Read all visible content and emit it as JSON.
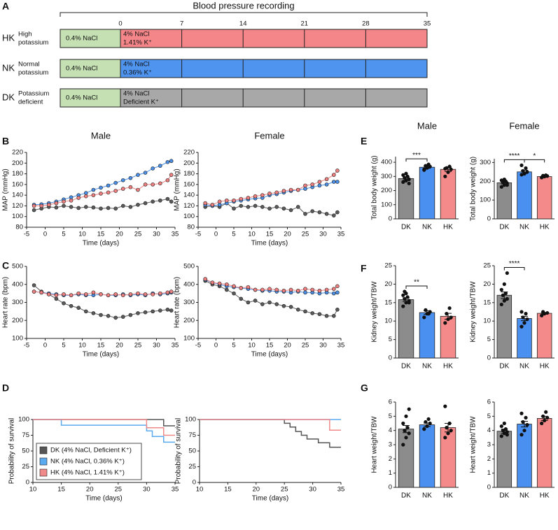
{
  "panel_labels": [
    "A",
    "B",
    "C",
    "D",
    "E",
    "F",
    "G"
  ],
  "timeline": {
    "title": "Blood pressure recording",
    "ticks": [
      0,
      7,
      14,
      21,
      28,
      35
    ],
    "rows": [
      {
        "group": "HK",
        "label": [
          "High",
          "potassium"
        ],
        "baseline": "0.4% NaCl",
        "diet": [
          "4% NaCl",
          "1.41% K⁺"
        ],
        "color": "#f4868a"
      },
      {
        "group": "NK",
        "label": [
          "Normal",
          "potassium"
        ],
        "baseline": "0.4% NaCl",
        "diet": [
          "4% NaCl",
          "0.36% K⁺"
        ],
        "color": "#4f94ef"
      },
      {
        "group": "DK",
        "label": [
          "Potassium",
          "deficient"
        ],
        "baseline": "0.4% NaCl",
        "diet": [
          "4% NaCl",
          "Deficient K⁺"
        ],
        "color": "#a8a8a8"
      }
    ],
    "baseline_color": "#c5e0b3"
  },
  "chart_data": [
    {
      "type": "line",
      "title": "Male",
      "xlabel": "Time (days)",
      "ylabel": "MAP (mmHg)",
      "x": [
        -3,
        -1,
        1,
        3,
        5,
        7,
        9,
        11,
        13,
        15,
        17,
        19,
        21,
        23,
        25,
        27,
        29,
        31,
        33,
        34
      ],
      "xlim": [
        -5,
        35
      ],
      "xticks": [
        -5,
        0,
        5,
        10,
        15,
        20,
        25,
        30,
        35
      ],
      "ylim": [
        80,
        220
      ],
      "yticks": [
        80,
        100,
        120,
        140,
        160,
        180,
        200,
        220
      ],
      "series": [
        {
          "color": "#5a5a5a",
          "values": [
            112,
            115,
            118,
            117,
            120,
            118,
            116,
            118,
            117,
            115,
            116,
            115,
            120,
            118,
            122,
            125,
            128,
            130,
            133,
            128
          ]
        },
        {
          "color": "#4a8fe7",
          "values": [
            122,
            123,
            125,
            128,
            132,
            136,
            140,
            144,
            150,
            154,
            158,
            163,
            168,
            172,
            178,
            182,
            190,
            195,
            202,
            204
          ]
        },
        {
          "color": "#ef7f7f",
          "values": [
            120,
            120,
            122,
            125,
            128,
            130,
            135,
            138,
            140,
            143,
            145,
            148,
            152,
            155,
            150,
            160,
            160,
            162,
            168,
            178
          ]
        }
      ]
    },
    {
      "type": "line",
      "title": "Female",
      "xlabel": "Time (days)",
      "ylabel": "MAP (mmHg)",
      "x": [
        -3,
        -1,
        1,
        3,
        5,
        7,
        9,
        11,
        13,
        15,
        17,
        19,
        21,
        23,
        25,
        27,
        29,
        31,
        33,
        34
      ],
      "xlim": [
        -5,
        35
      ],
      "xticks": [
        -5,
        0,
        5,
        10,
        15,
        20,
        25,
        30,
        35
      ],
      "ylim": [
        80,
        220
      ],
      "yticks": [
        80,
        100,
        120,
        140,
        160,
        180,
        200,
        220
      ],
      "series": [
        {
          "color": "#5a5a5a",
          "values": [
            118,
            120,
            118,
            125,
            115,
            120,
            118,
            120,
            118,
            115,
            118,
            115,
            112,
            118,
            105,
            110,
            108,
            105,
            102,
            108
          ]
        },
        {
          "color": "#4a8fe7",
          "values": [
            122,
            120,
            122,
            125,
            128,
            130,
            132,
            134,
            135,
            140,
            142,
            145,
            148,
            150,
            152,
            155,
            158,
            160,
            165,
            165
          ]
        },
        {
          "color": "#ef7f7f",
          "values": [
            125,
            122,
            128,
            130,
            130,
            133,
            135,
            138,
            140,
            143,
            145,
            148,
            150,
            150,
            158,
            160,
            165,
            170,
            178,
            186
          ]
        }
      ]
    },
    {
      "type": "line",
      "xlabel": "Time (days)",
      "ylabel": "Heart rate (bpm)",
      "x": [
        -3,
        -1,
        1,
        3,
        5,
        7,
        9,
        11,
        13,
        15,
        17,
        19,
        21,
        23,
        25,
        27,
        29,
        31,
        33,
        34
      ],
      "xlim": [
        -5,
        35
      ],
      "xticks": [
        -5,
        0,
        5,
        10,
        15,
        20,
        25,
        30,
        35
      ],
      "ylim": [
        100,
        500
      ],
      "yticks": [
        100,
        200,
        300,
        400,
        500
      ],
      "series": [
        {
          "color": "#5a5a5a",
          "values": [
            395,
            360,
            345,
            320,
            295,
            280,
            270,
            250,
            240,
            230,
            225,
            215,
            220,
            230,
            240,
            245,
            250,
            255,
            260,
            255
          ]
        },
        {
          "color": "#4a8fe7",
          "values": [
            360,
            355,
            350,
            345,
            340,
            340,
            345,
            340,
            340,
            345,
            340,
            340,
            345,
            340,
            345,
            340,
            350,
            345,
            350,
            355
          ]
        },
        {
          "color": "#ef7f7f",
          "values": [
            360,
            355,
            345,
            340,
            345,
            340,
            350,
            345,
            355,
            345,
            340,
            345,
            340,
            345,
            350,
            345,
            345,
            350,
            355,
            360
          ]
        }
      ]
    },
    {
      "type": "line",
      "xlabel": "Time (days)",
      "ylabel": "Heart rate (bpm)",
      "x": [
        -3,
        -1,
        1,
        3,
        5,
        7,
        9,
        11,
        13,
        15,
        17,
        19,
        21,
        23,
        25,
        27,
        29,
        31,
        33,
        34
      ],
      "xlim": [
        -5,
        35
      ],
      "xticks": [
        -5,
        0,
        5,
        10,
        15,
        20,
        25,
        30,
        35
      ],
      "ylim": [
        100,
        500
      ],
      "yticks": [
        100,
        200,
        300,
        400,
        500
      ],
      "series": [
        {
          "color": "#5a5a5a",
          "values": [
            420,
            400,
            390,
            370,
            350,
            320,
            300,
            310,
            290,
            300,
            290,
            280,
            275,
            260,
            250,
            240,
            235,
            225,
            225,
            260
          ]
        },
        {
          "color": "#4a8fe7",
          "values": [
            425,
            410,
            400,
            390,
            385,
            380,
            375,
            370,
            365,
            365,
            360,
            360,
            355,
            360,
            355,
            355,
            350,
            355,
            350,
            355
          ]
        },
        {
          "color": "#ef7f7f",
          "values": [
            430,
            410,
            405,
            400,
            390,
            380,
            385,
            370,
            370,
            375,
            370,
            365,
            370,
            365,
            375,
            370,
            365,
            370,
            375,
            390
          ]
        }
      ]
    },
    {
      "type": "step",
      "xlabel": "Time (days)",
      "ylabel": "Probability of survival",
      "legend": "lower left",
      "xlim": [
        10,
        35
      ],
      "xticks": [
        10,
        15,
        20,
        25,
        30,
        35
      ],
      "ylim": [
        0,
        100
      ],
      "yticks": [
        0,
        25,
        50,
        75,
        100
      ],
      "series": [
        {
          "name": "DK (4% NaCl, Deficient K⁺)",
          "color": "#555555",
          "x": [
            10,
            33,
            35
          ],
          "values": [
            100,
            90,
            90
          ]
        },
        {
          "name": "NK (4% NaCl, 0.36% K⁺)",
          "color": "#5aaaf0",
          "x": [
            10,
            15,
            30,
            31,
            33,
            35
          ],
          "values": [
            100,
            91,
            82,
            73,
            64,
            64
          ]
        },
        {
          "name": "HK (4% NaCl, 1.41% K⁺)",
          "color": "#f08a8a",
          "x": [
            10,
            30,
            33,
            35
          ],
          "values": [
            100,
            87,
            75,
            75
          ]
        }
      ]
    },
    {
      "type": "step",
      "xlabel": "Time (days)",
      "ylabel": "Probability of survival",
      "xlim": [
        10,
        35
      ],
      "xticks": [
        10,
        15,
        20,
        25,
        30,
        35
      ],
      "ylim": [
        0,
        100
      ],
      "yticks": [
        0,
        25,
        50,
        75,
        100
      ],
      "series": [
        {
          "color": "#555555",
          "x": [
            10,
            25,
            26,
            27,
            28,
            29,
            31,
            33,
            35
          ],
          "values": [
            100,
            94,
            88,
            81,
            75,
            69,
            63,
            56,
            56
          ]
        },
        {
          "color": "#5aaaf0",
          "x": [
            10,
            35
          ],
          "values": [
            100,
            100
          ]
        },
        {
          "color": "#f08a8a",
          "x": [
            10,
            33,
            35
          ],
          "values": [
            100,
            83,
            83
          ]
        }
      ]
    },
    {
      "type": "bar",
      "title": "Male",
      "ylabel": "Total body weight (g)",
      "categories": [
        "DK",
        "NK",
        "HK"
      ],
      "colors": [
        "#8c8c8c",
        "#4a90f0",
        "#f58a8a"
      ],
      "ylim": [
        0,
        440
      ],
      "yticks": [
        0,
        100,
        200,
        300,
        400
      ],
      "values": [
        285,
        365,
        350
      ],
      "errors": [
        12,
        8,
        15
      ],
      "points": [
        [
          260,
          270,
          280,
          290,
          300,
          310,
          320,
          250
        ],
        [
          350,
          360,
          370,
          375,
          385,
          345
        ],
        [
          300,
          330,
          350,
          360,
          370,
          355
        ]
      ],
      "significance": [
        {
          "pair": [
            "DK",
            "NK"
          ],
          "label": "***"
        }
      ]
    },
    {
      "type": "bar",
      "title": "Female",
      "ylabel": "Total body weight (g)",
      "categories": [
        "DK",
        "NK",
        "HK"
      ],
      "colors": [
        "#8c8c8c",
        "#4a90f0",
        "#f58a8a"
      ],
      "ylim": [
        0,
        320
      ],
      "yticks": [
        0,
        100,
        200,
        300
      ],
      "values": [
        192,
        250,
        225
      ],
      "errors": [
        6,
        9,
        3
      ],
      "points": [
        [
          170,
          180,
          190,
          195,
          200,
          205,
          210,
          180
        ],
        [
          235,
          240,
          250,
          255,
          270,
          285
        ],
        [
          220,
          225,
          228,
          230,
          232
        ]
      ],
      "significance": [
        {
          "pair": [
            "DK",
            "NK"
          ],
          "label": "****"
        },
        {
          "pair": [
            "NK",
            "HK"
          ],
          "label": "*"
        }
      ]
    },
    {
      "type": "bar",
      "ylabel": "Kidney weight/TBW",
      "categories": [
        "DK",
        "NK",
        "HK"
      ],
      "colors": [
        "#8c8c8c",
        "#4a90f0",
        "#f58a8a"
      ],
      "ylim": [
        0,
        25
      ],
      "yticks": [
        0,
        5,
        10,
        15,
        20,
        25
      ],
      "values": [
        15.8,
        12.3,
        11.3
      ],
      "errors": [
        0.5,
        0.5,
        0.8
      ],
      "points": [
        [
          14,
          15,
          15.5,
          16,
          16.5,
          17,
          17.5,
          15,
          18
        ],
        [
          11,
          12,
          12.5,
          13,
          12
        ],
        [
          9.5,
          10.5,
          11,
          12,
          13.5
        ]
      ],
      "significance": [
        {
          "pair": [
            "DK",
            "NK"
          ],
          "label": "**"
        }
      ]
    },
    {
      "type": "bar",
      "ylabel": "Kidney weight/TBW",
      "categories": [
        "DK",
        "NK",
        "HK"
      ],
      "colors": [
        "#8c8c8c",
        "#4a90f0",
        "#f58a8a"
      ],
      "ylim": [
        0,
        25
      ],
      "yticks": [
        0,
        5,
        10,
        15,
        20,
        25
      ],
      "values": [
        17,
        10.7,
        12.1
      ],
      "errors": [
        0.9,
        0.6,
        0.2
      ],
      "points": [
        [
          14.5,
          15.5,
          16,
          17,
          17.5,
          18.5,
          20,
          23
        ],
        [
          8.5,
          9.5,
          10.5,
          11,
          12,
          12.5
        ],
        [
          11.5,
          12,
          12.2,
          12.5
        ]
      ],
      "significance": [
        {
          "pair": [
            "DK",
            "NK"
          ],
          "label": "****"
        }
      ]
    },
    {
      "type": "bar",
      "ylabel": "Heart weight/TBW",
      "categories": [
        "DK",
        "NK",
        "HK"
      ],
      "colors": [
        "#8c8c8c",
        "#4a90f0",
        "#f58a8a"
      ],
      "ylim": [
        0,
        6
      ],
      "yticks": [
        0,
        1,
        2,
        3,
        4,
        5,
        6
      ],
      "values": [
        4.1,
        4.4,
        4.2
      ],
      "errors": [
        0.25,
        0.12,
        0.3
      ],
      "points": [
        [
          3,
          3.5,
          3.8,
          4,
          4.2,
          4.5,
          5,
          5.5
        ],
        [
          4.1,
          4.3,
          4.5,
          4.6,
          4.8
        ],
        [
          3.5,
          3.8,
          4,
          4.2,
          4.5,
          5.7
        ]
      ]
    },
    {
      "type": "bar",
      "ylabel": "Heart weight/TBW",
      "categories": [
        "DK",
        "NK",
        "HK"
      ],
      "colors": [
        "#8c8c8c",
        "#4a90f0",
        "#f58a8a"
      ],
      "ylim": [
        0,
        6
      ],
      "yticks": [
        0,
        1,
        2,
        3,
        4,
        5,
        6
      ],
      "values": [
        3.95,
        4.45,
        4.85
      ],
      "errors": [
        0.15,
        0.2,
        0.15
      ],
      "points": [
        [
          3.6,
          3.8,
          3.9,
          4,
          4.1,
          4.3,
          4.5,
          3.7
        ],
        [
          3.7,
          4,
          4.4,
          4.6,
          4.9,
          5.2
        ],
        [
          4.5,
          4.7,
          4.9,
          5,
          5.3
        ]
      ]
    }
  ]
}
